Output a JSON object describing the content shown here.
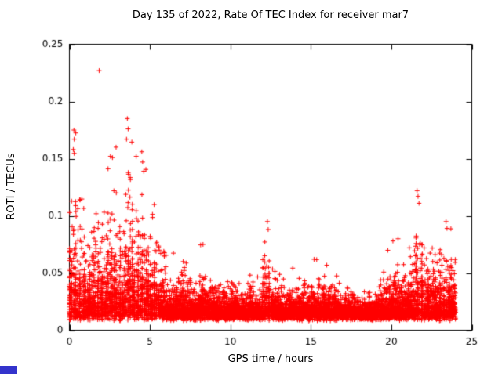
{
  "chart_data": {
    "type": "scatter",
    "title": "Day 135 of 2022, Rate Of TEC Index for receiver mar7",
    "xlabel": "GPS time / hours",
    "ylabel": "ROTI / TECUs",
    "xlim": [
      0,
      25
    ],
    "ylim": [
      0,
      0.25
    ],
    "xticks": [
      0,
      5,
      10,
      15,
      20,
      25
    ],
    "xtick_labels": [
      "0",
      "5",
      "10",
      "15",
      "20",
      "25"
    ],
    "yticks": [
      0,
      0.05,
      0.1,
      0.15,
      0.2,
      0.25
    ],
    "ytick_labels": [
      "0",
      "0.05",
      "0.1",
      "0.15",
      "0.2",
      "0.25"
    ],
    "grid": false,
    "legend": "none",
    "marker": "plus",
    "marker_color": "#ff0000",
    "axis_color": "#000000",
    "background_color": "#ffffff",
    "series": [
      {
        "name": "ROTI",
        "marker": "plus",
        "color": "#ff0000"
      }
    ],
    "scatter_profile": {
      "comment": "dense red + scatter; baseline band ~0.01-0.03 TECU all day; strong activity hours 0-5 (peaks to 0.227 near hour 1.9 and 0.185 near hour 3.6), quiet 6-19, renewed activity 19.5-24 (peak 0.122 near 21.6); data span 0-24 h",
      "seed": 135,
      "x_start": 0,
      "bin_width": 0.5,
      "points_per_bin": 165,
      "base_min": 0.008,
      "cluster_threshold": 0.09,
      "bin_max": [
        0.175,
        0.13,
        0.1,
        0.145,
        0.145,
        0.16,
        0.12,
        0.185,
        0.155,
        0.16,
        0.12,
        0.09,
        0.07,
        0.06,
        0.065,
        0.055,
        0.075,
        0.06,
        0.055,
        0.05,
        0.055,
        0.05,
        0.06,
        0.05,
        0.095,
        0.06,
        0.05,
        0.055,
        0.05,
        0.055,
        0.065,
        0.06,
        0.05,
        0.05,
        0.045,
        0.045,
        0.038,
        0.042,
        0.055,
        0.075,
        0.08,
        0.07,
        0.09,
        0.122,
        0.09,
        0.085,
        0.095,
        0.09
      ],
      "outliers": [
        [
          0.28,
          0.175
        ],
        [
          0.3,
          0.167
        ],
        [
          0.24,
          0.158
        ],
        [
          1.85,
          0.227
        ],
        [
          2.55,
          0.152
        ],
        [
          2.9,
          0.16
        ],
        [
          3.6,
          0.185
        ],
        [
          3.65,
          0.176
        ],
        [
          3.55,
          0.167
        ],
        [
          4.15,
          0.152
        ],
        [
          4.5,
          0.156
        ],
        [
          4.55,
          0.147
        ],
        [
          4.62,
          0.139
        ],
        [
          8.3,
          0.075
        ],
        [
          12.3,
          0.095
        ],
        [
          12.35,
          0.088
        ],
        [
          15.2,
          0.062
        ],
        [
          20.1,
          0.078
        ],
        [
          21.6,
          0.122
        ],
        [
          21.66,
          0.117
        ],
        [
          21.72,
          0.111
        ],
        [
          23.4,
          0.095
        ],
        [
          23.46,
          0.089
        ]
      ]
    }
  },
  "artifacts": {
    "corner_mark_color": "#3333cc"
  }
}
